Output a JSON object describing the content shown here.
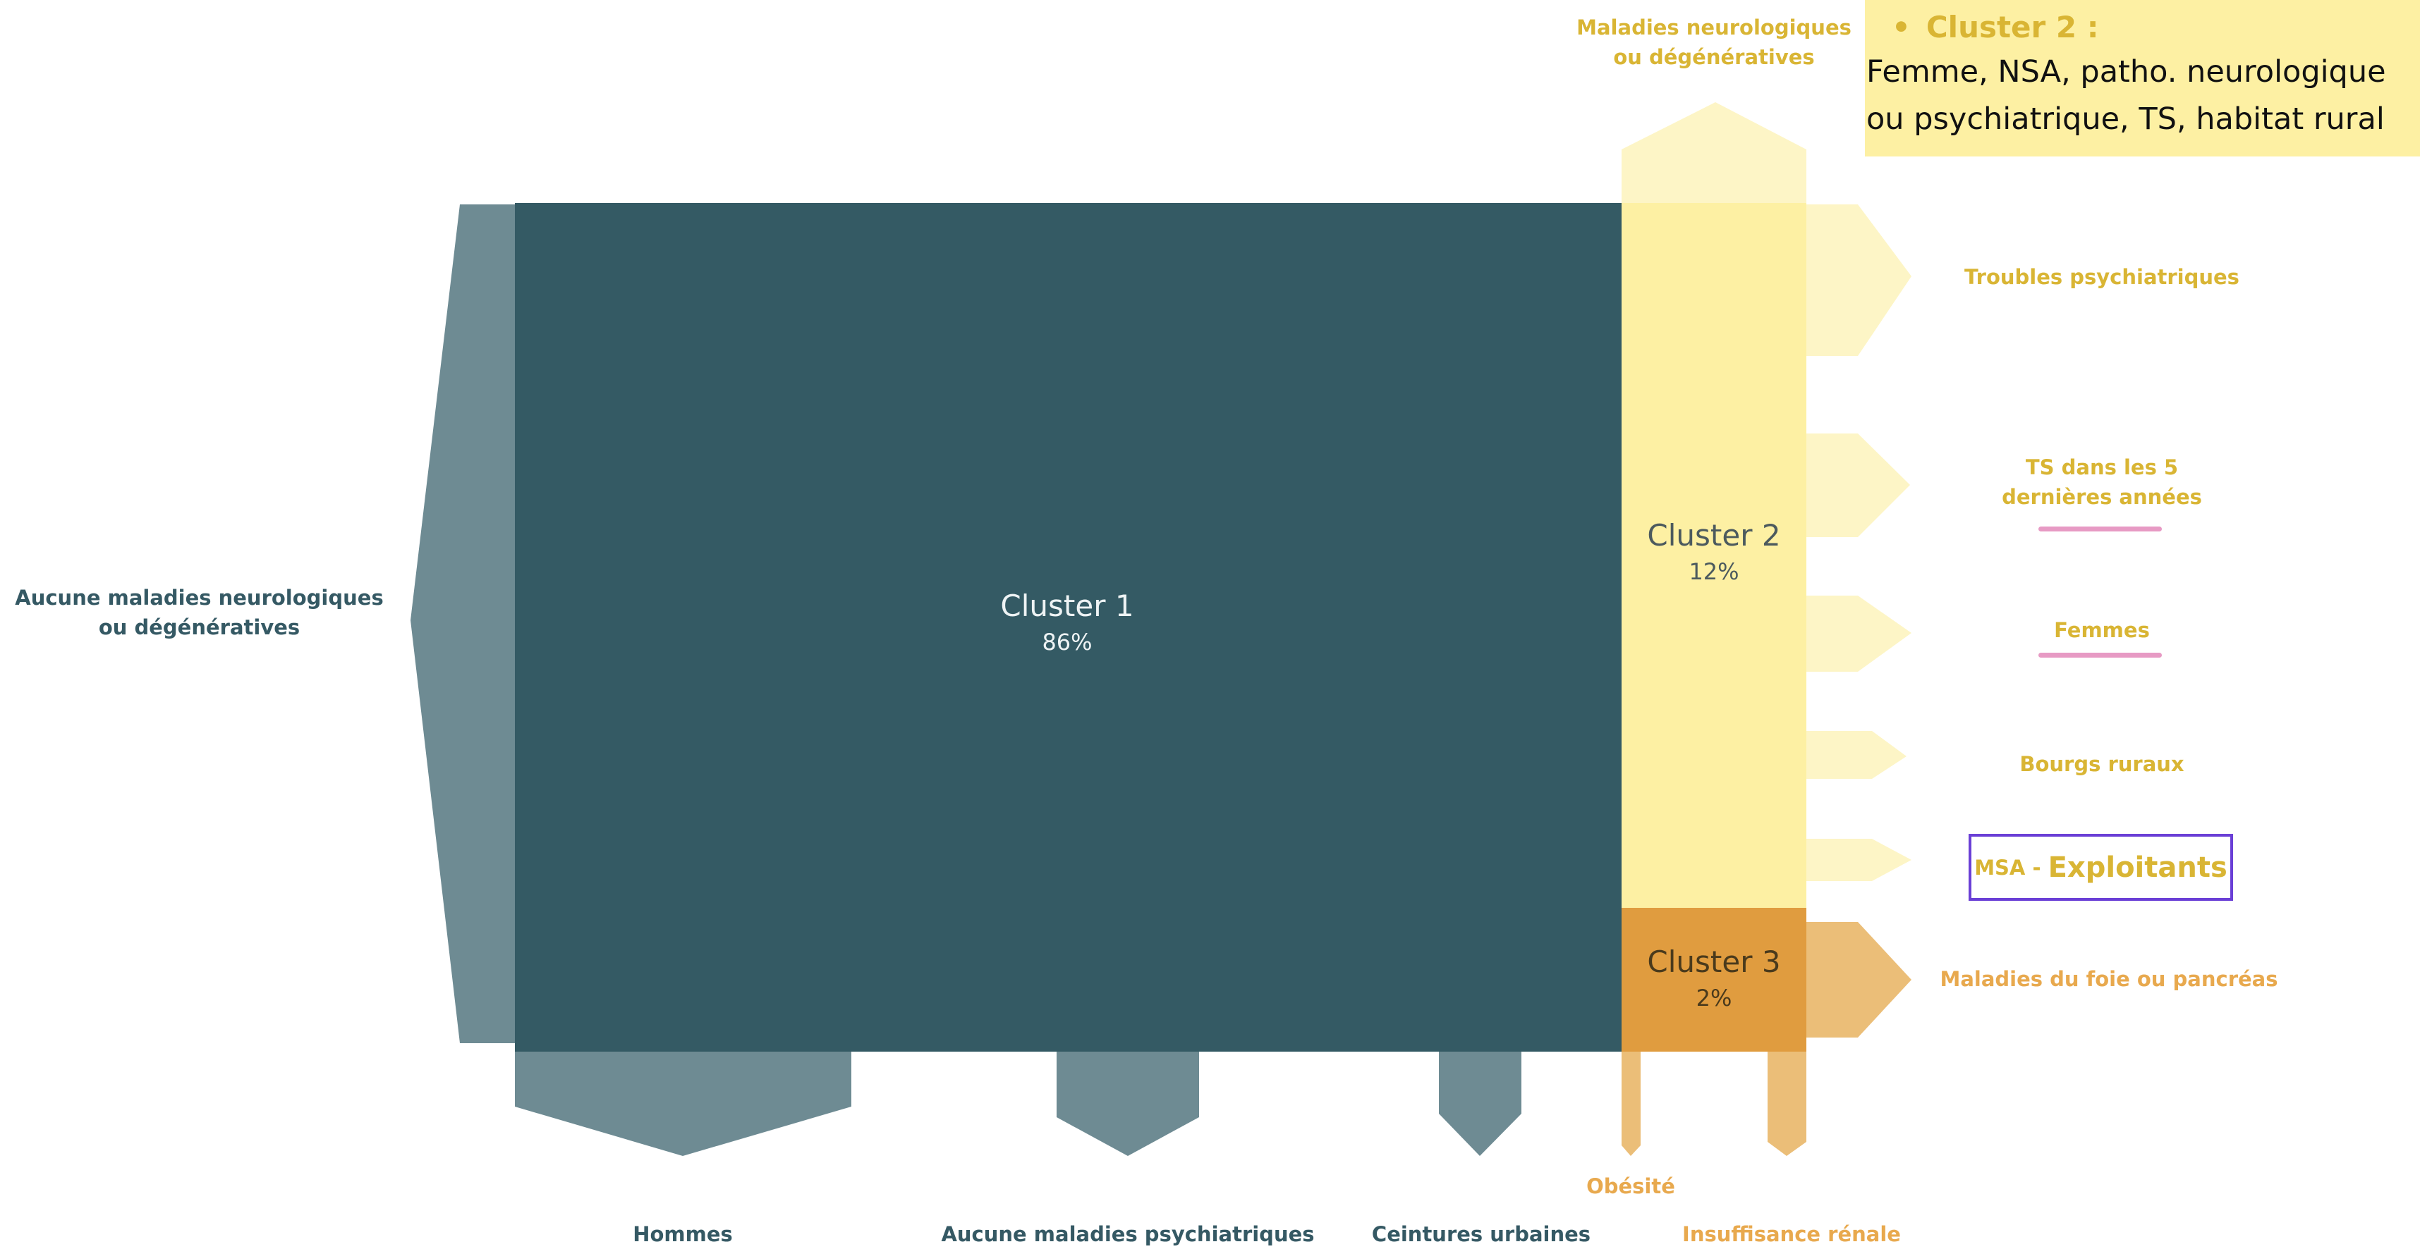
{
  "legend": {
    "bullet": "•",
    "title": "Cluster 2 :",
    "line1": "Femme, NSA, patho. neurologique",
    "line2": "ou psychiatrique, TS, habitat rural"
  },
  "clusters": [
    {
      "name": "Cluster 1",
      "percent": "86%",
      "color": "#345a64"
    },
    {
      "name": "Cluster 2",
      "percent": "12%",
      "color": "#fdf0a3"
    },
    {
      "name": "Cluster 3",
      "percent": "2%",
      "color": "#e09c3f"
    }
  ],
  "labels": {
    "left_main": [
      "Aucune maladies neurologiques",
      "ou dégénératives"
    ],
    "top": [
      "Maladies neurologiques",
      "ou dégénératives"
    ],
    "troubles": "Troubles psychiatriques",
    "ts": [
      "TS dans les 5",
      "dernières années"
    ],
    "femmes": "Femmes",
    "bourgs": "Bourgs ruraux",
    "msa_small": "MSA - ",
    "msa_big": "Exploitants",
    "foie": "Maladies du foie ou pancréas",
    "obesite": "Obésité",
    "hommes": "Hommes",
    "aucune_psy": "Aucune maladies psychiatriques",
    "ceintures": "Ceintures urbaines",
    "insuffisance": "Insuffisance rénale"
  },
  "colors": {
    "cluster1_arrow": "#6e8b93",
    "cluster2_arrow": "#fdf5c6",
    "cluster3_arrow": "#ebbe78",
    "teal_text": "#355964",
    "gold_text": "#d9b534",
    "orange_text": "#e8a94e",
    "highlight_underline": "#e79ac4",
    "box_border": "#6a3fd6"
  }
}
